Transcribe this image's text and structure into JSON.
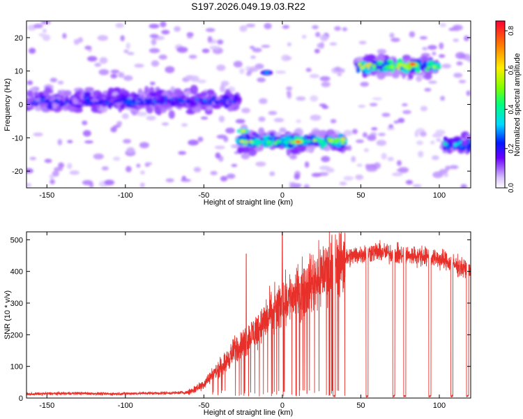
{
  "title": "S197.2026.049.19.03.R22",
  "chart_data": [
    {
      "type": "heatmap",
      "xlabel": "Height of straight line (km)",
      "ylabel": "Frequency (Hz)",
      "xlim": [
        -163,
        120
      ],
      "ylim": [
        -25,
        25
      ],
      "xticks": [
        -150,
        -100,
        -50,
        0,
        50,
        100
      ],
      "yticks": [
        -20,
        -10,
        0,
        10,
        20
      ],
      "colorbar": {
        "label": "Normalized spectral amplitude",
        "range": [
          0,
          0.85
        ],
        "ticks": [
          0.0,
          0.2,
          0.4,
          0.6,
          0.8
        ]
      },
      "ridge": [
        {
          "x0": -163,
          "x1": -28,
          "f": 1.0,
          "amp": 0.22
        },
        {
          "x0": -28,
          "x1": 40,
          "f": -11.0,
          "amp": 0.45
        },
        {
          "x0": 48,
          "x1": 100,
          "f": 11.5,
          "amp": 0.5
        },
        {
          "x0": 103,
          "x1": 120,
          "f": -12.0,
          "amp": 0.3
        }
      ],
      "peaks": [
        {
          "x": 10,
          "f": -11.2,
          "amp": 0.8
        },
        {
          "x": 83,
          "f": 12.0,
          "amp": 0.85
        },
        {
          "x": -25,
          "f": -8.0,
          "amp": 0.6
        },
        {
          "x": -10,
          "f": 9.5,
          "amp": 0.3
        }
      ]
    },
    {
      "type": "line",
      "xlabel": "Height of straight line (km)",
      "ylabel": "SNR (10 * v/v)",
      "xlim": [
        -163,
        120
      ],
      "ylim": [
        0,
        525
      ],
      "xticks": [
        -150,
        -100,
        -50,
        0,
        50,
        100
      ],
      "yticks": [
        0,
        100,
        200,
        300,
        400,
        500
      ],
      "color": "#e8302a",
      "series": [
        {
          "name": "SNR",
          "x": [
            -163,
            -150,
            -130,
            -110,
            -90,
            -70,
            -60,
            -55,
            -50,
            -45,
            -40,
            -35,
            -30,
            -25,
            -20,
            -15,
            -10,
            -5,
            0,
            5,
            10,
            15,
            20,
            25,
            30,
            35,
            40,
            45,
            50,
            55,
            60,
            65,
            70,
            75,
            80,
            85,
            90,
            95,
            100,
            105,
            110,
            115,
            120
          ],
          "y": [
            12,
            14,
            15,
            13,
            15,
            16,
            18,
            30,
            45,
            70,
            95,
            120,
            155,
            170,
            200,
            220,
            250,
            275,
            300,
            320,
            330,
            350,
            370,
            395,
            415,
            430,
            440,
            450,
            455,
            460,
            462,
            460,
            455,
            452,
            450,
            450,
            448,
            445,
            440,
            430,
            420,
            410,
            400
          ]
        }
      ],
      "dropouts": [
        33,
        54,
        71,
        78,
        94,
        108,
        118
      ],
      "spikes": [
        {
          "x": -23,
          "y": 455
        },
        {
          "x": 0,
          "y": 525
        }
      ]
    }
  ]
}
